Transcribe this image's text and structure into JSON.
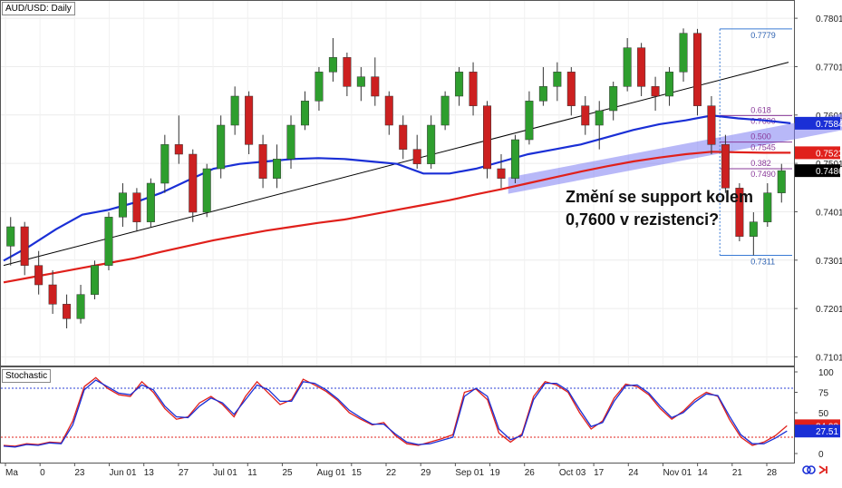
{
  "chart_data": {
    "type": "candlestick",
    "symbol_title": "AUD/USD: Daily",
    "annotation": "Změní se support kolem 0,7600 v rezistenci?",
    "price_axis_ticks": [
      "0.7801",
      "0.7701",
      "0.7601",
      "0.7501",
      "0.7401",
      "0.7301",
      "0.7201",
      "0.7101"
    ],
    "ylim": [
      0.7085,
      0.7835
    ],
    "price_badges": [
      {
        "label": "0.7584",
        "value": 0.7584,
        "color": "#1a2fd6"
      },
      {
        "label": "0.7523",
        "value": 0.7523,
        "color": "#e0201b"
      },
      {
        "label": "0.7486",
        "value": 0.7486,
        "color": "#000000"
      }
    ],
    "fibonacci": {
      "high": 0.7779,
      "low": 0.7311,
      "levels": [
        {
          "ratio": "0.618",
          "price": "0.7600",
          "value": 0.76
        },
        {
          "ratio": "0.500",
          "price": "0.7545",
          "value": 0.7545
        },
        {
          "ratio": "0.382",
          "price": "0.7490",
          "value": 0.749
        }
      ],
      "high_label": "0.7779",
      "low_label": "0.7311"
    },
    "x_ticks": [
      "Ma",
      "0",
      "23",
      "Jun 01",
      "13",
      "27",
      "Jul 01",
      "11",
      "25",
      "Aug 01",
      "15",
      "22",
      "29",
      "Sep 01",
      "19",
      "26",
      "Oct 03",
      "17",
      "24",
      "Nov 01",
      "14",
      "21",
      "28"
    ],
    "series": [
      {
        "name": "",
        "kind": "ma",
        "color": "#1a2fd6",
        "values": [
          0.73,
          0.733,
          0.7365,
          0.7395,
          0.7405,
          0.742,
          0.744,
          0.7465,
          0.749,
          0.75,
          0.7505,
          0.751,
          0.7512,
          0.751,
          0.7505,
          0.75,
          0.748,
          0.748,
          0.749,
          0.7505,
          0.752,
          0.753,
          0.754,
          0.7555,
          0.757,
          0.7582,
          0.759,
          0.76,
          0.7594,
          0.759,
          0.7584
        ]
      },
      {
        "name": "",
        "kind": "ma",
        "color": "#e0201b",
        "values": [
          0.7255,
          0.7265,
          0.7275,
          0.7285,
          0.7295,
          0.7305,
          0.7318,
          0.733,
          0.7342,
          0.7352,
          0.7362,
          0.737,
          0.7378,
          0.7385,
          0.7395,
          0.7405,
          0.7415,
          0.7425,
          0.7437,
          0.7448,
          0.746,
          0.7472,
          0.7484,
          0.7495,
          0.7505,
          0.7513,
          0.752,
          0.7525,
          0.7524,
          0.7523,
          0.7523
        ]
      }
    ],
    "trendline": {
      "start": 0.729,
      "end": 0.771,
      "color": "#000000"
    },
    "channel": {
      "start": 0.7455,
      "end": 0.7578,
      "color": "#7d7df2"
    },
    "candles": [
      {
        "o": 0.733,
        "h": 0.739,
        "l": 0.729,
        "c": 0.737
      },
      {
        "o": 0.737,
        "h": 0.738,
        "l": 0.727,
        "c": 0.729
      },
      {
        "o": 0.729,
        "h": 0.732,
        "l": 0.723,
        "c": 0.725
      },
      {
        "o": 0.725,
        "h": 0.728,
        "l": 0.719,
        "c": 0.721
      },
      {
        "o": 0.721,
        "h": 0.723,
        "l": 0.716,
        "c": 0.718
      },
      {
        "o": 0.718,
        "h": 0.725,
        "l": 0.717,
        "c": 0.723
      },
      {
        "o": 0.723,
        "h": 0.73,
        "l": 0.722,
        "c": 0.729
      },
      {
        "o": 0.729,
        "h": 0.74,
        "l": 0.728,
        "c": 0.739
      },
      {
        "o": 0.739,
        "h": 0.746,
        "l": 0.737,
        "c": 0.744
      },
      {
        "o": 0.744,
        "h": 0.745,
        "l": 0.736,
        "c": 0.738
      },
      {
        "o": 0.738,
        "h": 0.747,
        "l": 0.737,
        "c": 0.746
      },
      {
        "o": 0.746,
        "h": 0.756,
        "l": 0.744,
        "c": 0.754
      },
      {
        "o": 0.754,
        "h": 0.76,
        "l": 0.75,
        "c": 0.752
      },
      {
        "o": 0.752,
        "h": 0.753,
        "l": 0.738,
        "c": 0.74
      },
      {
        "o": 0.74,
        "h": 0.75,
        "l": 0.739,
        "c": 0.749
      },
      {
        "o": 0.749,
        "h": 0.76,
        "l": 0.747,
        "c": 0.758
      },
      {
        "o": 0.758,
        "h": 0.766,
        "l": 0.756,
        "c": 0.764
      },
      {
        "o": 0.764,
        "h": 0.765,
        "l": 0.752,
        "c": 0.754
      },
      {
        "o": 0.754,
        "h": 0.756,
        "l": 0.745,
        "c": 0.747
      },
      {
        "o": 0.747,
        "h": 0.754,
        "l": 0.745,
        "c": 0.751
      },
      {
        "o": 0.751,
        "h": 0.76,
        "l": 0.749,
        "c": 0.758
      },
      {
        "o": 0.758,
        "h": 0.765,
        "l": 0.757,
        "c": 0.763
      },
      {
        "o": 0.763,
        "h": 0.77,
        "l": 0.761,
        "c": 0.769
      },
      {
        "o": 0.769,
        "h": 0.776,
        "l": 0.767,
        "c": 0.772
      },
      {
        "o": 0.772,
        "h": 0.773,
        "l": 0.764,
        "c": 0.766
      },
      {
        "o": 0.766,
        "h": 0.77,
        "l": 0.763,
        "c": 0.768
      },
      {
        "o": 0.768,
        "h": 0.772,
        "l": 0.762,
        "c": 0.764
      },
      {
        "o": 0.764,
        "h": 0.765,
        "l": 0.756,
        "c": 0.758
      },
      {
        "o": 0.758,
        "h": 0.76,
        "l": 0.751,
        "c": 0.753
      },
      {
        "o": 0.753,
        "h": 0.756,
        "l": 0.749,
        "c": 0.75
      },
      {
        "o": 0.75,
        "h": 0.76,
        "l": 0.749,
        "c": 0.758
      },
      {
        "o": 0.758,
        "h": 0.765,
        "l": 0.757,
        "c": 0.764
      },
      {
        "o": 0.764,
        "h": 0.77,
        "l": 0.762,
        "c": 0.769
      },
      {
        "o": 0.769,
        "h": 0.771,
        "l": 0.76,
        "c": 0.762
      },
      {
        "o": 0.762,
        "h": 0.763,
        "l": 0.747,
        "c": 0.749
      },
      {
        "o": 0.749,
        "h": 0.752,
        "l": 0.745,
        "c": 0.747
      },
      {
        "o": 0.747,
        "h": 0.756,
        "l": 0.746,
        "c": 0.755
      },
      {
        "o": 0.755,
        "h": 0.765,
        "l": 0.754,
        "c": 0.763
      },
      {
        "o": 0.763,
        "h": 0.77,
        "l": 0.762,
        "c": 0.766
      },
      {
        "o": 0.766,
        "h": 0.771,
        "l": 0.763,
        "c": 0.769
      },
      {
        "o": 0.769,
        "h": 0.77,
        "l": 0.76,
        "c": 0.762
      },
      {
        "o": 0.762,
        "h": 0.764,
        "l": 0.756,
        "c": 0.758
      },
      {
        "o": 0.758,
        "h": 0.763,
        "l": 0.753,
        "c": 0.761
      },
      {
        "o": 0.761,
        "h": 0.767,
        "l": 0.759,
        "c": 0.766
      },
      {
        "o": 0.766,
        "h": 0.776,
        "l": 0.765,
        "c": 0.774
      },
      {
        "o": 0.774,
        "h": 0.775,
        "l": 0.764,
        "c": 0.766
      },
      {
        "o": 0.766,
        "h": 0.768,
        "l": 0.761,
        "c": 0.764
      },
      {
        "o": 0.764,
        "h": 0.77,
        "l": 0.762,
        "c": 0.769
      },
      {
        "o": 0.769,
        "h": 0.778,
        "l": 0.767,
        "c": 0.777
      },
      {
        "o": 0.777,
        "h": 0.7779,
        "l": 0.76,
        "c": 0.762
      },
      {
        "o": 0.762,
        "h": 0.764,
        "l": 0.752,
        "c": 0.754
      },
      {
        "o": 0.754,
        "h": 0.756,
        "l": 0.744,
        "c": 0.745
      },
      {
        "o": 0.745,
        "h": 0.746,
        "l": 0.734,
        "c": 0.735
      },
      {
        "o": 0.735,
        "h": 0.74,
        "l": 0.7311,
        "c": 0.738
      },
      {
        "o": 0.738,
        "h": 0.746,
        "l": 0.737,
        "c": 0.744
      },
      {
        "o": 0.744,
        "h": 0.75,
        "l": 0.742,
        "c": 0.7486
      }
    ],
    "stochastic": {
      "title": "Stochastic",
      "ylim": [
        0,
        100
      ],
      "ticks": [
        "100",
        "75",
        "50",
        "25",
        "0"
      ],
      "overbought": 80,
      "oversold": 20,
      "badges": [
        {
          "label": "34.03",
          "value": 34.03,
          "color": "#e0201b"
        },
        {
          "label": "27.51",
          "value": 27.51,
          "color": "#1a2fd6"
        }
      ],
      "k": [
        10,
        9,
        12,
        11,
        14,
        13,
        40,
        82,
        93,
        80,
        72,
        70,
        88,
        75,
        55,
        42,
        45,
        62,
        70,
        60,
        45,
        70,
        88,
        74,
        60,
        66,
        91,
        84,
        76,
        65,
        50,
        42,
        35,
        38,
        22,
        12,
        10,
        14,
        18,
        23,
        75,
        79,
        66,
        25,
        14,
        24,
        70,
        88,
        84,
        75,
        50,
        30,
        40,
        68,
        85,
        82,
        72,
        55,
        42,
        52,
        66,
        75,
        70,
        42,
        20,
        10,
        14,
        22,
        34
      ],
      "d": [
        9,
        8,
        11,
        10,
        13,
        12,
        35,
        78,
        90,
        82,
        74,
        72,
        84,
        78,
        58,
        45,
        44,
        58,
        68,
        62,
        48,
        66,
        84,
        78,
        64,
        64,
        88,
        86,
        78,
        67,
        53,
        44,
        36,
        36,
        24,
        14,
        11,
        12,
        16,
        20,
        70,
        80,
        70,
        30,
        17,
        22,
        66,
        86,
        86,
        77,
        54,
        33,
        38,
        64,
        83,
        84,
        74,
        58,
        44,
        50,
        63,
        73,
        71,
        46,
        23,
        12,
        12,
        19,
        27.51
      ]
    }
  }
}
